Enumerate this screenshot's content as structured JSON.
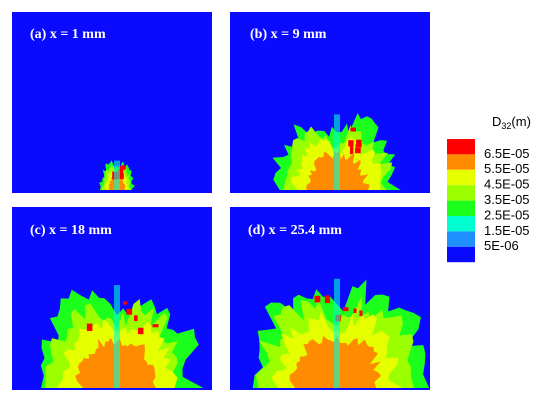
{
  "panels": [
    {
      "label": "(a) x = 1 mm"
    },
    {
      "label": "(b) x = 9 mm"
    },
    {
      "label": "(c) x = 18 mm"
    },
    {
      "label": "(d) x = 25.4 mm"
    }
  ],
  "colorbar": {
    "title": {
      "symbol": "D",
      "subscript": "32",
      "unit": "(m)"
    },
    "labels": [
      "6.5E-05",
      "5.5E-05",
      "4.5E-05",
      "3.5E-05",
      "2.5E-05",
      "1.5E-05",
      "5E-06"
    ],
    "colors": [
      "#ff0000",
      "#ff8c00",
      "#e5ff00",
      "#9cff00",
      "#1cff1c",
      "#00ffd0",
      "#1e90ff",
      "#0a0aff"
    ]
  }
}
